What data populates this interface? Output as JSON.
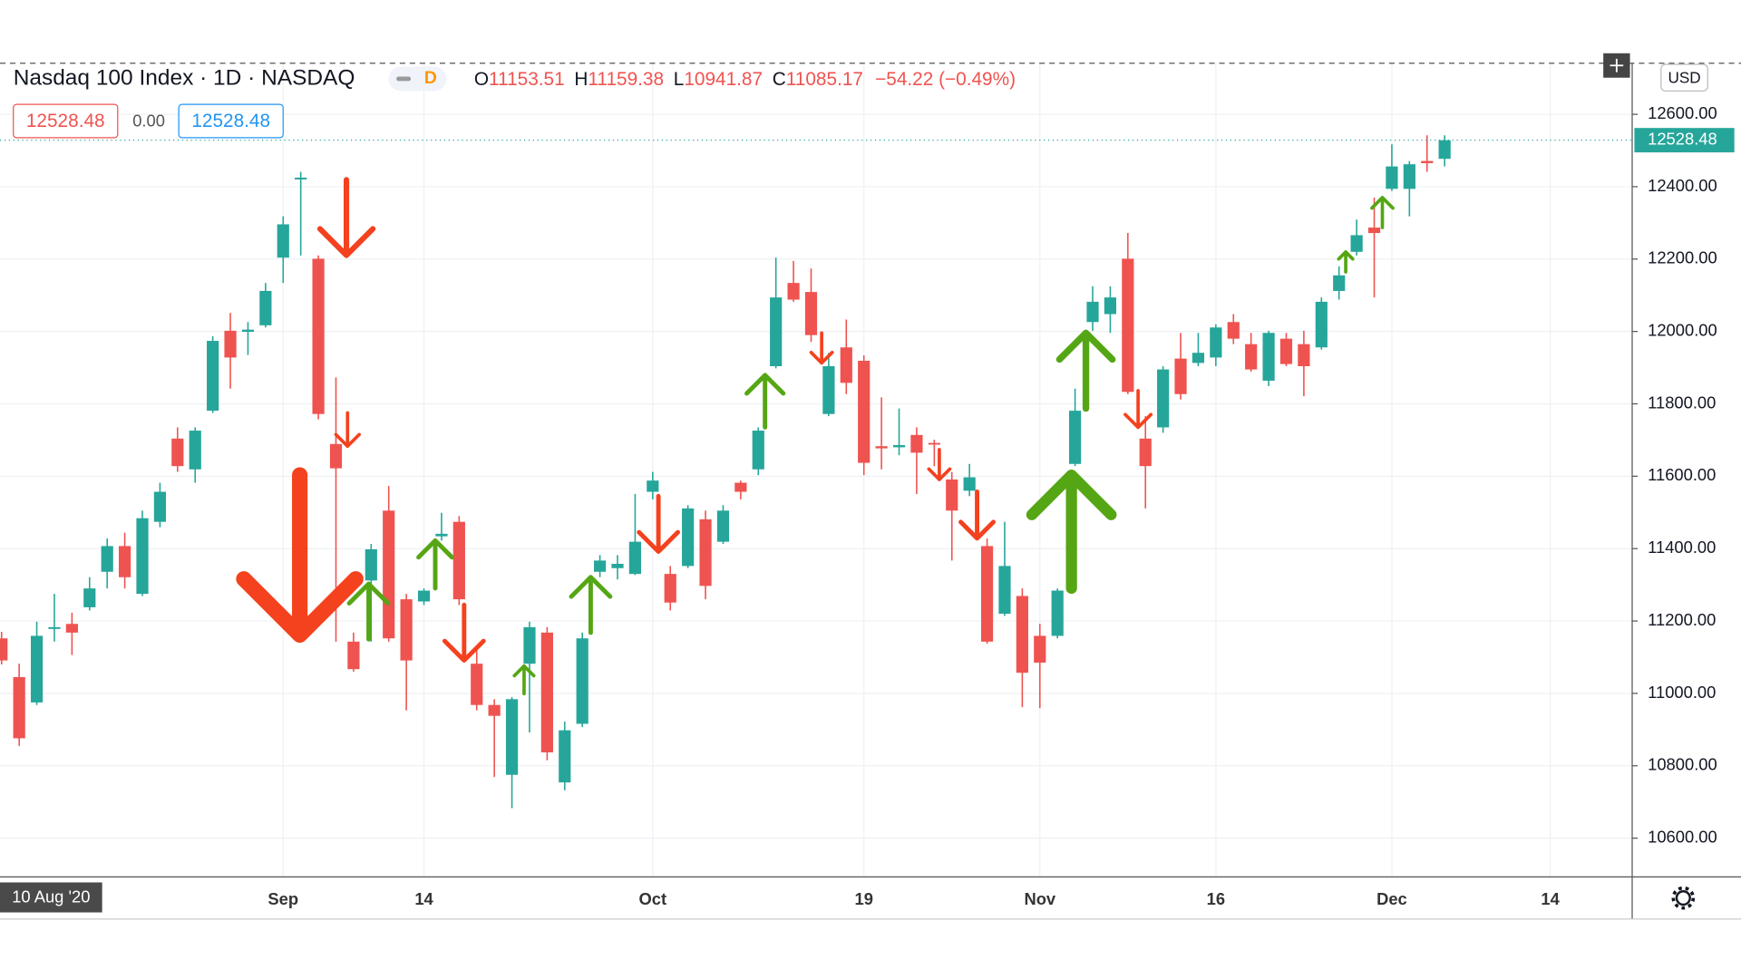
{
  "header": {
    "title": "Nasdaq 100 Index · 1D · NASDAQ",
    "badge": "D",
    "open_prefix": "O",
    "open": 11153.51,
    "high_prefix": "H",
    "high": 11159.38,
    "low_prefix": "L",
    "low": 10941.87,
    "close_prefix": "C",
    "close": 11085.17,
    "change": "−54.22 (−0.49%)",
    "bid": "12528.48",
    "spread": "0.00",
    "ask": "12528.48",
    "currency": "USD"
  },
  "chart_data": {
    "type": "candlestick",
    "date_label": "10 Aug '20",
    "categories": [
      null,
      null,
      null,
      null,
      null,
      null,
      null,
      null,
      null,
      null,
      null,
      null,
      null,
      null,
      null,
      null,
      "Sep",
      null,
      null,
      null,
      null,
      null,
      null,
      null,
      "14",
      null,
      null,
      null,
      null,
      null,
      null,
      null,
      null,
      null,
      null,
      null,
      null,
      "Oct",
      null,
      null,
      null,
      null,
      null,
      null,
      null,
      null,
      null,
      null,
      null,
      "19",
      null,
      null,
      null,
      null,
      null,
      null,
      null,
      null,
      null,
      "Nov",
      null,
      null,
      null,
      null,
      null,
      null,
      null,
      null,
      null,
      "16",
      null,
      null,
      null,
      null,
      null,
      null,
      null,
      null,
      null,
      "Dec",
      null,
      null,
      null,
      null,
      null,
      null,
      null,
      null,
      "14",
      null,
      null,
      null,
      null
    ],
    "open": [
      11152,
      11045,
      10975,
      11178,
      11192,
      11238,
      11336,
      11407,
      11275,
      11474,
      11704,
      11619,
      11781,
      12002,
      11999,
      12017,
      12204,
      12420,
      12201,
      11689,
      11143,
      11312,
      11505,
      11260,
      11254,
      11434,
      11474,
      11082,
      10968,
      10775,
      11082,
      11168,
      10754,
      10916,
      11336,
      11346,
      11330,
      11557,
      11330,
      11352,
      11481,
      11419,
      11582,
      11619,
      11904,
      12134,
      12109,
      11772,
      11956,
      11919,
      11683,
      11680,
      11714,
      11692,
      11591,
      11560,
      11407,
      11220,
      11269,
      11159,
      11159,
      11634,
      12026,
      12048,
      12201,
      11704,
      11735,
      11925,
      11913,
      11928,
      12026,
      11965,
      11864,
      11980,
      11965,
      11956,
      12112,
      12220,
      12287,
      12394,
      12394,
      12471,
      12477,
      null,
      null,
      null,
      null,
      null,
      null,
      null,
      null,
      null,
      null
    ],
    "high": [
      11170,
      11082,
      11198,
      11275,
      11223,
      11321,
      11428,
      11444,
      11505,
      11582,
      11735,
      11735,
      11987,
      12051,
      12026,
      12134,
      12318,
      12441,
      12210,
      11873,
      11168,
      11413,
      11573,
      11275,
      11290,
      11499,
      11490,
      11122,
      10984,
      10990,
      11198,
      11183,
      10922,
      11168,
      11382,
      11382,
      11551,
      11612,
      11352,
      11520,
      11505,
      11520,
      11588,
      11735,
      12204,
      12195,
      12174,
      11941,
      12033,
      11934,
      11818,
      11787,
      11735,
      11701,
      11612,
      11634,
      11428,
      11474,
      11290,
      11192,
      11290,
      11842,
      12125,
      12125,
      12272,
      11766,
      11904,
      11996,
      11996,
      12020,
      12048,
      11996,
      12002,
      11996,
      12002,
      12094,
      12180,
      12309,
      12370,
      12517,
      12471,
      12542,
      12542,
      null,
      null,
      null,
      null,
      null,
      null,
      null,
      null,
      null,
      null
    ],
    "low": [
      11080,
      10855,
      10968,
      11143,
      11106,
      11229,
      11290,
      11290,
      11269,
      11459,
      11612,
      11582,
      11775,
      11842,
      11935,
      12011,
      12134,
      12210,
      11757,
      11143,
      11060,
      11143,
      11143,
      10953,
      11244,
      11422,
      11244,
      10953,
      10769,
      10683,
      10892,
      10815,
      10732,
      10907,
      11321,
      11315,
      11327,
      11536,
      11229,
      11346,
      11260,
      11413,
      11536,
      11603,
      11898,
      12082,
      11971,
      11766,
      11827,
      11603,
      11619,
      11658,
      11551,
      11628,
      11367,
      11545,
      11137,
      11214,
      10962,
      10959,
      11152,
      11628,
      12002,
      11996,
      11827,
      11511,
      11720,
      11812,
      11904,
      11904,
      11965,
      11889,
      11849,
      11904,
      11821,
      11950,
      12088,
      12210,
      12094,
      12388,
      12318,
      12441,
      12456,
      null,
      null,
      null,
      null,
      null,
      null,
      null,
      null,
      null,
      null
    ],
    "close": [
      11091,
      10876,
      11159,
      11183,
      11168,
      11290,
      11407,
      11321,
      11484,
      11557,
      11628,
      11726,
      11974,
      11928,
      12005,
      12112,
      12296,
      12425,
      11772,
      11622,
      11067,
      11398,
      11152,
      11091,
      11284,
      11441,
      11260,
      10968,
      10938,
      10984,
      11183,
      10837,
      10898,
      11152,
      11367,
      11358,
      11419,
      11588,
      11251,
      11511,
      11297,
      11505,
      11557,
      11726,
      12094,
      12088,
      11990,
      11904,
      11858,
      11637,
      11677,
      11686,
      11665,
      11689,
      11505,
      11597,
      11143,
      11352,
      11057,
      11085,
      11284,
      11781,
      12082,
      12094,
      11833,
      11628,
      11895,
      11827,
      11941,
      12011,
      11980,
      11895,
      11996,
      11910,
      11904,
      12082,
      12155,
      12266,
      12272,
      12456,
      12462,
      12465,
      12528.48,
      null,
      null,
      null,
      null,
      null,
      null,
      null,
      null,
      null,
      null
    ],
    "up_color": "#26a69a",
    "down_color": "#ef5350",
    "last_price": {
      "value": 12528.48,
      "label": "12528.48"
    },
    "ylim": [
      10493,
      12741
    ],
    "yticks": [
      {
        "value": 10600,
        "label": "10600.00"
      },
      {
        "value": 10800,
        "label": "10800.00"
      },
      {
        "value": 11000,
        "label": "11000.00"
      },
      {
        "value": 11200,
        "label": "11200.00"
      },
      {
        "value": 11400,
        "label": "11400.00"
      },
      {
        "value": 11600,
        "label": "11600.00"
      },
      {
        "value": 11800,
        "label": "11800.00"
      },
      {
        "value": 12000,
        "label": "12000.00"
      },
      {
        "value": 12200,
        "label": "12200.00"
      },
      {
        "value": 12400,
        "label": "12400.00"
      },
      {
        "value": 12600,
        "label": "12600.00"
      }
    ],
    "grid": true
  }
}
